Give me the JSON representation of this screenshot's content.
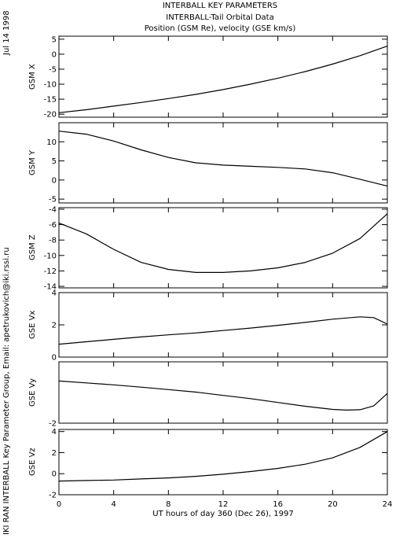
{
  "header": {
    "title": "INTERBALL KEY PARAMETERS",
    "subtitle": "INTERBALL-Tail Orbital Data",
    "units": "Position (GSM Re), velocity (GSE km/s)"
  },
  "side_text": {
    "date": "Jul 14 1998",
    "credit": "IKI RAN INTERBALL Key Parameter Group, Email: apetrukovich@iki.rssi.ru"
  },
  "chart_data": {
    "type": "line",
    "xlabel": "UT hours of day 360 (Dec 26), 1997",
    "xlim": [
      0,
      24
    ],
    "xticks": [
      0,
      4,
      8,
      12,
      16,
      20,
      24
    ],
    "panels": [
      {
        "name": "GSM X",
        "ylim": [
          -21,
          6
        ],
        "yticks": [
          5,
          0,
          -5,
          -10,
          -15,
          -20
        ],
        "x": [
          0,
          2,
          4,
          6,
          8,
          10,
          12,
          14,
          16,
          18,
          20,
          22,
          24
        ],
        "y": [
          -19.5,
          -18.5,
          -17.3,
          -16.1,
          -14.8,
          -13.4,
          -11.8,
          -10.0,
          -8.0,
          -5.8,
          -3.3,
          -0.5,
          2.7
        ]
      },
      {
        "name": "GSM Y",
        "ylim": [
          -6,
          15
        ],
        "yticks": [
          10,
          5,
          0,
          -5
        ],
        "x": [
          0,
          2,
          4,
          6,
          8,
          10,
          12,
          14,
          16,
          18,
          20,
          22,
          24
        ],
        "y": [
          12.8,
          12.0,
          10.2,
          7.9,
          5.9,
          4.5,
          3.9,
          3.6,
          3.3,
          2.9,
          1.9,
          0.2,
          -1.6
        ]
      },
      {
        "name": "GSM Z",
        "ylim": [
          -14.2,
          -3.8
        ],
        "yticks": [
          -4,
          -6,
          -8,
          -10,
          -12,
          -14
        ],
        "x": [
          0,
          2,
          4,
          6,
          8,
          10,
          12,
          14,
          16,
          18,
          20,
          22,
          24
        ],
        "y": [
          -5.8,
          -7.2,
          -9.2,
          -10.9,
          -11.8,
          -12.2,
          -12.2,
          -12.0,
          -11.6,
          -10.9,
          -9.7,
          -7.8,
          -4.6
        ]
      },
      {
        "name": "GSE Vx",
        "ylim": [
          0,
          4
        ],
        "yticks": [
          4,
          2,
          0
        ],
        "x": [
          0,
          2,
          4,
          6,
          8,
          10,
          12,
          14,
          16,
          18,
          20,
          22,
          23,
          24
        ],
        "y": [
          0.8,
          0.95,
          1.1,
          1.25,
          1.38,
          1.5,
          1.65,
          1.8,
          1.97,
          2.15,
          2.35,
          2.5,
          2.45,
          2.05
        ]
      },
      {
        "name": "GSE Vy",
        "ylim": [
          -2,
          1.2
        ],
        "yticks": [
          -2
        ],
        "x": [
          0,
          2,
          4,
          6,
          8,
          10,
          12,
          14,
          16,
          18,
          20,
          21,
          22,
          23,
          24
        ],
        "y": [
          0.2,
          0.1,
          0.0,
          -0.12,
          -0.25,
          -0.38,
          -0.55,
          -0.72,
          -0.92,
          -1.12,
          -1.28,
          -1.32,
          -1.3,
          -1.1,
          -0.45
        ]
      },
      {
        "name": "GSE Vz",
        "ylim": [
          -2,
          4.2
        ],
        "yticks": [
          4,
          2,
          0,
          -2
        ],
        "x": [
          0,
          2,
          4,
          6,
          8,
          10,
          12,
          14,
          16,
          18,
          20,
          22,
          24
        ],
        "y": [
          -0.7,
          -0.65,
          -0.6,
          -0.5,
          -0.4,
          -0.25,
          -0.05,
          0.2,
          0.5,
          0.9,
          1.5,
          2.5,
          4.0
        ]
      }
    ]
  }
}
